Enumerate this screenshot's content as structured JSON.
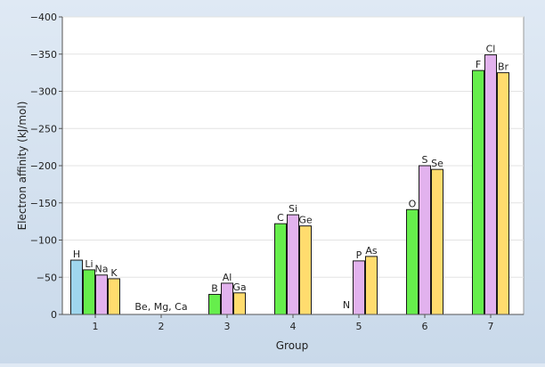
{
  "chart_data": {
    "type": "bar",
    "title": "",
    "xlabel": "Group",
    "ylabel": "Electron affinity (kJ/mol)",
    "ylim": [
      0,
      -400
    ],
    "yticks": [
      "0",
      "−50",
      "−100",
      "−150",
      "−200",
      "−250",
      "−300",
      "−350",
      "−400"
    ],
    "ytick_values": [
      0,
      -50,
      -100,
      -150,
      -200,
      -250,
      -300,
      -350,
      -400
    ],
    "grid": true,
    "categories": [
      "1",
      "2",
      "3",
      "4",
      "5",
      "6",
      "7"
    ],
    "groups": [
      {
        "category": "1",
        "bars": [
          {
            "element": "H",
            "value": -73,
            "color": "#9fd6ee"
          },
          {
            "element": "Li",
            "value": -60,
            "color": "#66ee4c"
          },
          {
            "element": "Na",
            "value": -53,
            "color": "#e2b2ee"
          },
          {
            "element": "K",
            "value": -48,
            "color": "#ffdc6e"
          }
        ]
      },
      {
        "category": "2",
        "note": "Be, Mg, Ca",
        "bars": []
      },
      {
        "category": "3",
        "bars": [
          {
            "element": "B",
            "value": -27,
            "color": "#66ee4c"
          },
          {
            "element": "Al",
            "value": -42,
            "color": "#e2b2ee"
          },
          {
            "element": "Ga",
            "value": -29,
            "color": "#ffdc6e"
          }
        ]
      },
      {
        "category": "4",
        "bars": [
          {
            "element": "C",
            "value": -122,
            "color": "#66ee4c"
          },
          {
            "element": "Si",
            "value": -134,
            "color": "#e2b2ee"
          },
          {
            "element": "Ge",
            "value": -119,
            "color": "#ffdc6e"
          }
        ]
      },
      {
        "category": "5",
        "bars": [
          {
            "element": "N",
            "value": 0,
            "color": "#66ee4c"
          },
          {
            "element": "P",
            "value": -72,
            "color": "#e2b2ee"
          },
          {
            "element": "As",
            "value": -78,
            "color": "#ffdc6e"
          }
        ]
      },
      {
        "category": "6",
        "bars": [
          {
            "element": "O",
            "value": -141,
            "color": "#66ee4c"
          },
          {
            "element": "S",
            "value": -200,
            "color": "#e2b2ee"
          },
          {
            "element": "Se",
            "value": -195,
            "color": "#ffdc6e"
          }
        ]
      },
      {
        "category": "7",
        "bars": [
          {
            "element": "F",
            "value": -328,
            "color": "#66ee4c"
          },
          {
            "element": "Cl",
            "value": -349,
            "color": "#e2b2ee"
          },
          {
            "element": "Br",
            "value": -325,
            "color": "#ffdc6e"
          }
        ]
      }
    ]
  }
}
